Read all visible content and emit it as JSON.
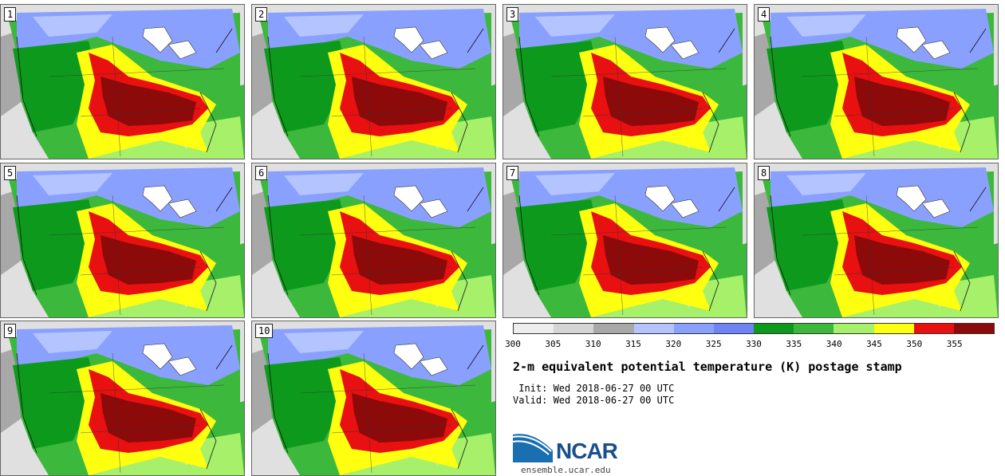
{
  "panels": [
    "1",
    "2",
    "3",
    "4",
    "5",
    "6",
    "7",
    "8",
    "9",
    "10"
  ],
  "colorbar": {
    "colors": [
      "#eeeeee",
      "#d5d5d5",
      "#a8a8a8",
      "#b4c4ff",
      "#8aa0ff",
      "#6e84f5",
      "#0d9a1c",
      "#3cb83c",
      "#a6f06a",
      "#ffff10",
      "#e81010",
      "#8c0a0a"
    ],
    "ticks": [
      "300",
      "305",
      "310",
      "315",
      "320",
      "325",
      "330",
      "335",
      "340",
      "345",
      "350",
      "355"
    ]
  },
  "title": "2-m equivalent potential temperature (K) postage stamp",
  "init": " Init: Wed 2018-06-27 00 UTC",
  "valid": "Valid: Wed 2018-06-27 00 UTC",
  "logo_text": "NCAR",
  "url": "ensemble.ucar.edu"
}
